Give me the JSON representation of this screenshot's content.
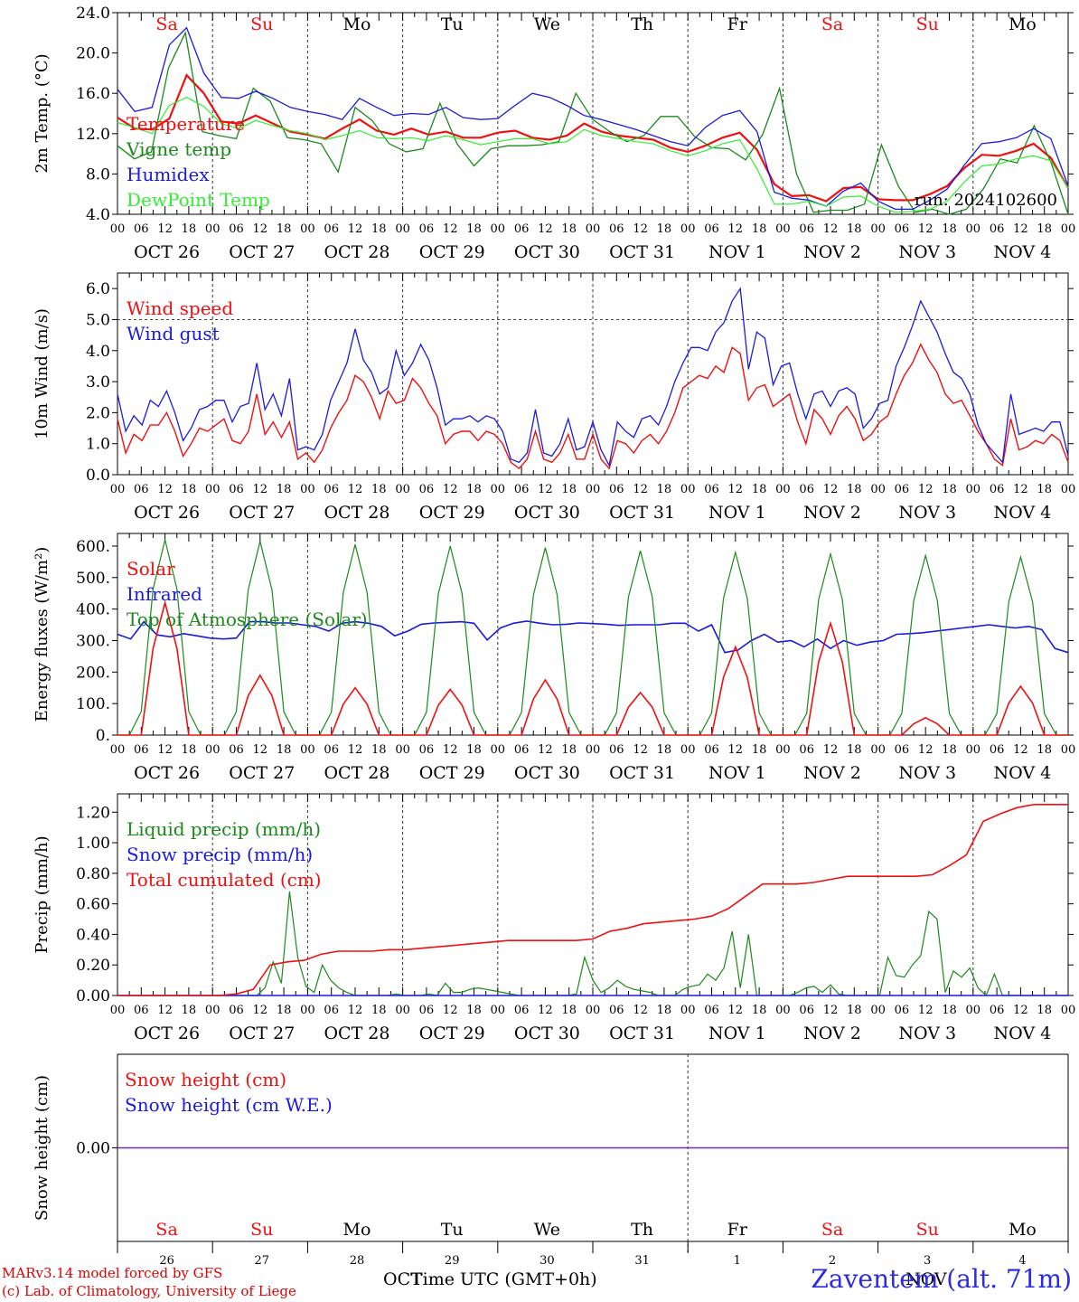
{
  "colors": {
    "red": "#f01010",
    "green": "#1a8a1a",
    "blue": "#1a1ae0",
    "lightgreen": "#33ee33",
    "purple": "#7a2a9a",
    "weekend": "#f01010",
    "weekday": "#000000"
  },
  "day_abbr": [
    "Sa",
    "Su",
    "Mo",
    "Tu",
    "We",
    "Th",
    "Fr",
    "Sa",
    "Su",
    "Mo"
  ],
  "weekend_flags": [
    true,
    true,
    false,
    false,
    false,
    false,
    false,
    true,
    true,
    false
  ],
  "date_labels": [
    "OCT 26",
    "OCT 27",
    "OCT 28",
    "OCT 29",
    "OCT 30",
    "OCT 31",
    "NOV  1",
    "NOV  2",
    "NOV  3",
    "NOV  4"
  ],
  "hour_ticks": [
    "00",
    "06",
    "12",
    "18"
  ],
  "day_numbers": [
    "26",
    "27",
    "28",
    "29",
    "30",
    "31",
    "1",
    "2",
    "3",
    "4"
  ],
  "bottom_month_left": "OCT",
  "bottom_month_right": "NOV",
  "xlabel": "Time UTC (GMT+0h)",
  "credit_lines": [
    "MARv3.14 model forced by GFS",
    "(c) Lab. of Climatology, University of Liege"
  ],
  "station": "Zaventem (alt. 71m)",
  "run_label": "run: 2024102600",
  "chart_data": [
    {
      "type": "line",
      "ylabel": "2m Temp. (°C)",
      "ylim": [
        4.0,
        24.0
      ],
      "yticks": [
        "4.0",
        "8.0",
        "12.0",
        "16.0",
        "20.0",
        "24.0"
      ],
      "ytick_values": [
        4,
        8,
        12,
        16,
        20,
        24
      ],
      "x_hours_step": 6,
      "series": [
        {
          "name": "Temperature",
          "color": "red",
          "width": 2.2,
          "values": [
            13.6,
            12.5,
            12.4,
            13.5,
            17.8,
            16.0,
            13.2,
            13.0,
            13.8,
            13.0,
            12.2,
            11.9,
            11.5,
            12.5,
            13.4,
            12.3,
            11.9,
            12.5,
            11.9,
            12.2,
            11.6,
            11.6,
            12.1,
            12.3,
            11.6,
            11.4,
            11.8,
            13.0,
            12.2,
            11.8,
            11.6,
            11.4,
            10.6,
            10.2,
            10.8,
            11.6,
            12.1,
            10.4,
            7.0,
            5.8,
            5.9,
            5.3,
            6.6,
            6.7,
            5.5,
            5.4,
            5.4,
            6.0,
            6.8,
            8.6,
            9.9,
            9.8,
            10.3,
            11.0,
            9.6,
            6.6
          ]
        },
        {
          "name": "Vigne temp",
          "color": "green",
          "width": 1.3,
          "values": [
            10.8,
            9.5,
            10.2,
            18.5,
            22.0,
            12.2,
            11.8,
            11.5,
            16.5,
            15.2,
            11.6,
            11.4,
            11.0,
            8.2,
            14.6,
            13.3,
            11.0,
            10.2,
            10.5,
            15.0,
            11.0,
            8.8,
            10.5,
            10.8,
            10.8,
            10.9,
            11.2,
            16.0,
            13.4,
            12.2,
            11.2,
            11.8,
            13.7,
            13.7,
            11.7,
            10.6,
            10.5,
            9.4,
            11.9,
            16.5,
            8.0,
            4.2,
            4.4,
            4.4,
            5.0,
            10.9,
            6.8,
            4.2,
            4.5,
            4.0,
            4.5,
            6.5,
            9.5,
            9.1,
            12.8,
            9.1,
            4.0
          ]
        },
        {
          "name": "Humidex",
          "color": "blue",
          "width": 1.3,
          "values": [
            16.4,
            14.2,
            14.6,
            20.8,
            22.5,
            18.0,
            15.6,
            15.5,
            16.2,
            15.5,
            14.6,
            14.2,
            13.9,
            13.4,
            15.5,
            14.6,
            13.8,
            14.0,
            13.9,
            14.6,
            13.6,
            13.4,
            13.5,
            14.8,
            16.0,
            15.6,
            14.8,
            13.8,
            13.4,
            12.9,
            12.4,
            11.8,
            11.2,
            10.8,
            12.6,
            13.8,
            14.3,
            12.2,
            6.2,
            5.6,
            5.4,
            4.8,
            6.3,
            7.1,
            5.3,
            4.5,
            4.5,
            5.4,
            6.5,
            8.9,
            11.0,
            11.2,
            11.6,
            12.5,
            11.5,
            6.8
          ]
        },
        {
          "name": "DewPoint Temp",
          "color": "lightgreen",
          "width": 1.2,
          "values": [
            13.1,
            12.6,
            12.0,
            14.8,
            15.6,
            14.7,
            13.0,
            12.5,
            13.3,
            12.8,
            12.3,
            12.0,
            11.4,
            11.8,
            12.3,
            11.6,
            11.5,
            11.6,
            11.3,
            11.8,
            11.4,
            10.9,
            11.2,
            11.5,
            11.5,
            11.0,
            11.2,
            12.4,
            11.8,
            11.5,
            11.2,
            11.0,
            10.3,
            9.8,
            10.3,
            11.0,
            11.4,
            8.5,
            5.0,
            5.0,
            5.3,
            4.8,
            5.7,
            5.8,
            4.8,
            4.2,
            4.3,
            4.5,
            5.3,
            7.2,
            8.8,
            9.0,
            9.5,
            9.8,
            9.3,
            6.6
          ]
        }
      ]
    },
    {
      "type": "line",
      "ylabel": "10m Wind (m/s)",
      "ylim": [
        0.0,
        6.5
      ],
      "yticks": [
        "0.0",
        "1.0",
        "2.0",
        "3.0",
        "4.0",
        "5.0",
        "6.0"
      ],
      "ytick_values": [
        0,
        1,
        2,
        3,
        4,
        5,
        6
      ],
      "reference_line": 5.0,
      "x_hours_step": 3,
      "series": [
        {
          "name": "Wind speed",
          "color": "red",
          "width": 1.4,
          "values": [
            1.8,
            0.7,
            1.3,
            1.1,
            1.6,
            1.6,
            2.0,
            1.4,
            0.6,
            1.0,
            1.5,
            1.4,
            1.6,
            1.8,
            1.1,
            1.0,
            1.4,
            2.6,
            1.3,
            1.7,
            1.2,
            1.7,
            0.5,
            0.7,
            0.4,
            0.8,
            1.5,
            2.0,
            2.4,
            3.2,
            3.0,
            2.5,
            1.8,
            2.7,
            2.3,
            2.4,
            3.1,
            2.8,
            2.3,
            1.9,
            1.0,
            1.3,
            1.4,
            1.4,
            1.1,
            1.4,
            1.3,
            1.0,
            0.4,
            0.2,
            0.5,
            1.4,
            0.5,
            0.4,
            0.7,
            1.3,
            0.5,
            0.5,
            1.3,
            0.5,
            0.2,
            1.1,
            1.0,
            0.7,
            1.1,
            1.3,
            1.0,
            1.4,
            2.0,
            2.8,
            3.0,
            3.2,
            3.1,
            3.5,
            3.3,
            4.1,
            3.9,
            2.4,
            2.8,
            2.9,
            2.2,
            2.4,
            2.6,
            1.7,
            1.0,
            2.1,
            1.8,
            1.3,
            1.9,
            2.2,
            1.8,
            1.1,
            1.3,
            1.7,
            1.9,
            2.6,
            3.2,
            3.6,
            4.2,
            3.7,
            3.3,
            2.6,
            2.3,
            2.4,
            1.9,
            1.4,
            1.0,
            0.5,
            0.3,
            1.8,
            0.8,
            0.9,
            1.1,
            1.0,
            1.3,
            1.1,
            0.4
          ]
        },
        {
          "name": "Wind gust",
          "color": "blue",
          "width": 1.3,
          "values": [
            2.6,
            1.4,
            1.9,
            1.6,
            2.4,
            2.2,
            2.7,
            2.0,
            1.1,
            1.5,
            2.1,
            2.2,
            2.4,
            2.4,
            1.7,
            2.2,
            2.3,
            3.6,
            2.1,
            2.6,
            1.9,
            3.1,
            0.8,
            0.9,
            0.8,
            1.3,
            2.4,
            3.0,
            3.6,
            4.7,
            3.7,
            3.3,
            2.6,
            2.8,
            4.0,
            3.2,
            3.6,
            4.2,
            3.7,
            2.8,
            1.6,
            1.8,
            1.8,
            1.9,
            1.7,
            1.9,
            1.8,
            1.4,
            0.5,
            0.4,
            0.7,
            2.1,
            0.7,
            0.6,
            1.0,
            1.8,
            0.8,
            0.9,
            1.7,
            0.8,
            0.3,
            1.7,
            1.4,
            1.2,
            1.8,
            1.9,
            1.6,
            2.2,
            3.0,
            3.6,
            4.1,
            4.1,
            4.0,
            4.6,
            4.9,
            5.6,
            6.0,
            3.4,
            4.6,
            4.4,
            2.9,
            3.5,
            3.6,
            2.6,
            1.8,
            2.6,
            2.7,
            2.2,
            2.7,
            2.8,
            2.6,
            1.5,
            1.8,
            2.3,
            2.4,
            3.5,
            4.1,
            4.8,
            5.6,
            5.1,
            4.6,
            3.9,
            3.3,
            3.1,
            2.6,
            1.6,
            1.0,
            0.7,
            0.4,
            2.6,
            1.3,
            1.4,
            1.5,
            1.4,
            1.7,
            1.7,
            0.6
          ]
        }
      ]
    },
    {
      "type": "line",
      "ylabel": "Energy fluxes (W/m²)",
      "ylim": [
        0,
        640
      ],
      "yticks": [
        "0.",
        "100.",
        "200.",
        "300.",
        "400.",
        "500.",
        "600."
      ],
      "ytick_values": [
        0,
        100,
        200,
        300,
        400,
        500,
        600
      ],
      "x_hours_step": 3,
      "series": [
        {
          "name": "Solar",
          "color": "red",
          "width": 1.6,
          "day_peaks": [
            420,
            190,
            150,
            145,
            175,
            135,
            280,
            355,
            55,
            155
          ]
        },
        {
          "name": "Infrared",
          "color": "blue",
          "width": 1.6,
          "values": [
            320,
            305,
            360,
            318,
            312,
            322,
            315,
            308,
            305,
            308,
            360,
            360,
            356,
            356,
            350,
            345,
            330,
            355,
            360,
            355,
            345,
            315,
            330,
            352,
            356,
            358,
            360,
            355,
            302,
            340,
            355,
            362,
            355,
            350,
            352,
            356,
            354,
            352,
            348,
            350,
            350,
            350,
            355,
            355,
            330,
            350,
            262,
            270,
            300,
            320,
            295,
            300,
            280,
            305,
            275,
            300,
            285,
            295,
            300,
            320,
            322,
            325,
            330,
            335,
            340,
            345,
            350,
            345,
            340,
            345,
            335,
            275,
            262
          ]
        },
        {
          "name": "Top of Atmosphere (Solar)",
          "color": "green",
          "width": 1.2,
          "day_peaks": [
            620,
            615,
            605,
            600,
            595,
            585,
            580,
            575,
            570,
            565
          ]
        }
      ]
    },
    {
      "type": "line",
      "ylabel": "Precip (mm/h)",
      "ylim": [
        0.0,
        1.32
      ],
      "yticks": [
        "0.00",
        "0.20",
        "0.40",
        "0.60",
        "0.80",
        "1.00",
        "1.20"
      ],
      "ytick_values": [
        0,
        0.2,
        0.4,
        0.6,
        0.8,
        1.0,
        1.2
      ],
      "x_hours_step": 3,
      "series": [
        {
          "name": "Liquid precip (mm/h)",
          "color": "green",
          "width": 1.2,
          "values": [
            0,
            0,
            0,
            0,
            0,
            0,
            0,
            0,
            0,
            0,
            0,
            0,
            0,
            0,
            0,
            0,
            0,
            0,
            0.05,
            0.22,
            0.08,
            0.68,
            0.25,
            0.06,
            0.02,
            0.2,
            0.1,
            0.05,
            0.02,
            0,
            0,
            0,
            0,
            0,
            0.01,
            0,
            0,
            0,
            0.01,
            0,
            0.08,
            0.02,
            0.02,
            0.04,
            0.05,
            0.04,
            0.03,
            0.02,
            0.01,
            0,
            0,
            0,
            0,
            0,
            0,
            0,
            0.01,
            0.25,
            0.1,
            0.02,
            0.05,
            0.1,
            0.06,
            0.04,
            0.03,
            0.02,
            0,
            0,
            0,
            0.04,
            0.06,
            0.07,
            0.14,
            0.1,
            0.18,
            0.42,
            0.05,
            0.4,
            0,
            0,
            0,
            0,
            0,
            0.02,
            0.05,
            0.06,
            0.02,
            0.07,
            0.01,
            0,
            0,
            0,
            0,
            0,
            0.25,
            0.13,
            0.12,
            0.2,
            0.26,
            0.55,
            0.5,
            0.02,
            0.16,
            0.12,
            0.18,
            0.05,
            0,
            0.14,
            0,
            0,
            0,
            0,
            0,
            0,
            0,
            0,
            0
          ]
        },
        {
          "name": "Snow precip (mm/h)",
          "color": "blue",
          "width": 1.4,
          "values": [
            0,
            0
          ]
        },
        {
          "name": "Total cumulated (cm)",
          "color": "red",
          "width": 1.6,
          "values": [
            0,
            0,
            0,
            0,
            0,
            0,
            0,
            0.01,
            0.04,
            0.2,
            0.22,
            0.23,
            0.27,
            0.29,
            0.29,
            0.29,
            0.3,
            0.3,
            0.31,
            0.32,
            0.33,
            0.34,
            0.35,
            0.36,
            0.36,
            0.36,
            0.36,
            0.36,
            0.37,
            0.42,
            0.44,
            0.47,
            0.48,
            0.49,
            0.5,
            0.52,
            0.57,
            0.65,
            0.73,
            0.73,
            0.73,
            0.74,
            0.76,
            0.78,
            0.78,
            0.78,
            0.78,
            0.78,
            0.79,
            0.85,
            0.92,
            1.14,
            1.19,
            1.23,
            1.25,
            1.25,
            1.25
          ]
        }
      ]
    },
    {
      "type": "line",
      "ylabel": "Snow height (cm)",
      "ylim": [
        -1,
        1
      ],
      "yticks": [
        "0.00"
      ],
      "ytick_values": [
        0
      ],
      "series": [
        {
          "name": "Snow height (cm)",
          "color": "red",
          "values": [
            0,
            0
          ]
        },
        {
          "name": "Snow height (cm W.E.)",
          "color": "blue",
          "values": [
            0,
            0
          ]
        }
      ]
    }
  ]
}
